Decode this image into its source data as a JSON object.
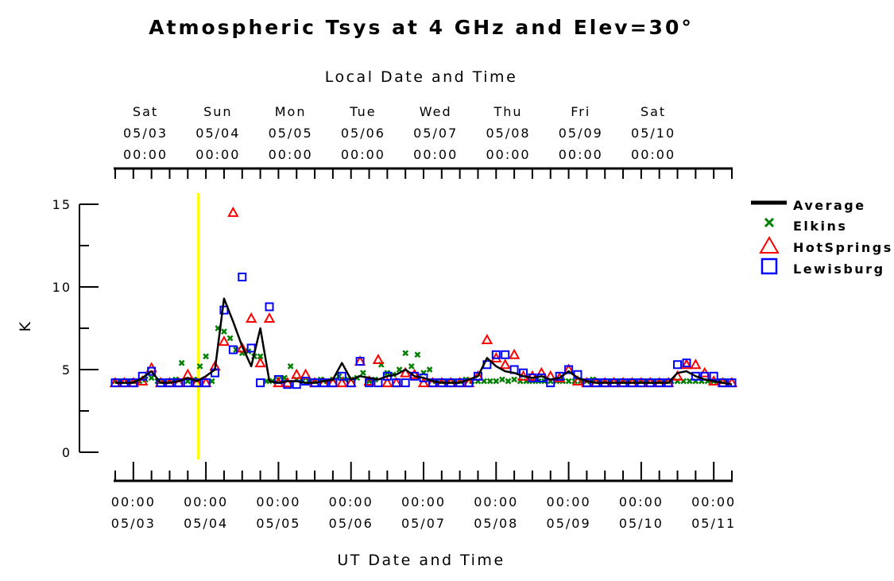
{
  "chart_data": {
    "type": "scatter",
    "title": "Atmospheric Tsys at 4 GHz and Elev=30°",
    "top_axis_label": "Local Date and Time",
    "xlabel": "UT Date and Time",
    "ylabel": "K",
    "ylim": [
      0,
      15
    ],
    "yticks": [
      0,
      5,
      10,
      15
    ],
    "xlim_hours_ut": [
      -6,
      198
    ],
    "x_unit": "hours since 05/03 00:00 UT",
    "bottom_ticks": [
      {
        "time": "00:00",
        "date": "05/03"
      },
      {
        "time": "00:00",
        "date": "05/04"
      },
      {
        "time": "00:00",
        "date": "05/05"
      },
      {
        "time": "00:00",
        "date": "05/06"
      },
      {
        "time": "00:00",
        "date": "05/07"
      },
      {
        "time": "00:00",
        "date": "05/08"
      },
      {
        "time": "00:00",
        "date": "05/09"
      },
      {
        "time": "00:00",
        "date": "05/10"
      },
      {
        "time": "00:00",
        "date": "05/11"
      }
    ],
    "top_ticks": [
      {
        "day": "Sat",
        "date": "05/03",
        "time": "00:00"
      },
      {
        "day": "Sun",
        "date": "05/04",
        "time": "00:00"
      },
      {
        "day": "Mon",
        "date": "05/05",
        "time": "00:00"
      },
      {
        "day": "Tue",
        "date": "05/06",
        "time": "00:00"
      },
      {
        "day": "Wed",
        "date": "05/07",
        "time": "00:00"
      },
      {
        "day": "Thu",
        "date": "05/08",
        "time": "00:00"
      },
      {
        "day": "Fri",
        "date": "05/09",
        "time": "00:00"
      },
      {
        "day": "Sat",
        "date": "05/10",
        "time": "00:00"
      }
    ],
    "local_offset_hours": -4,
    "marker_line_hour": 21.5,
    "marker_line_color": "#ffff00",
    "grid": false,
    "legend_position": "right",
    "series": [
      {
        "name": "Average",
        "marker": "line",
        "color": "#000000",
        "x": [
          -6,
          -3,
          0,
          3,
          6,
          9,
          12,
          15,
          18,
          21,
          24,
          27,
          30,
          33,
          36,
          39,
          42,
          45,
          48,
          51,
          54,
          57,
          60,
          63,
          66,
          69,
          72,
          75,
          78,
          81,
          84,
          87,
          90,
          93,
          96,
          99,
          102,
          105,
          108,
          111,
          114,
          117,
          120,
          123,
          126,
          129,
          132,
          135,
          138,
          141,
          144,
          147,
          150,
          153,
          156,
          159,
          162,
          165,
          168,
          171,
          174,
          177,
          180,
          183,
          186,
          189,
          192,
          195,
          198
        ],
        "values": [
          4.2,
          4.2,
          4.2,
          4.5,
          4.9,
          4.2,
          4.2,
          4.3,
          4.5,
          4.3,
          4.6,
          5.0,
          9.3,
          7.9,
          6.4,
          5.2,
          7.5,
          4.3,
          4.2,
          4.3,
          4.3,
          4.2,
          4.2,
          4.3,
          4.4,
          5.4,
          4.4,
          4.6,
          4.5,
          4.4,
          4.6,
          4.7,
          5.0,
          4.6,
          4.5,
          4.3,
          4.2,
          4.2,
          4.2,
          4.4,
          4.6,
          5.7,
          5.2,
          4.9,
          4.8,
          4.6,
          4.5,
          4.6,
          4.4,
          4.5,
          4.9,
          4.5,
          4.3,
          4.2,
          4.2,
          4.2,
          4.2,
          4.2,
          4.2,
          4.2,
          4.2,
          4.2,
          4.8,
          4.9,
          4.6,
          4.4,
          4.3,
          4.2,
          4.1
        ]
      },
      {
        "name": "Elkins",
        "marker": "x",
        "color": "#008000",
        "x": [
          -6,
          -4,
          -2,
          0,
          2,
          4,
          6,
          8,
          10,
          12,
          14,
          16,
          18,
          20,
          22,
          24,
          26,
          28,
          30,
          32,
          34,
          36,
          38,
          40,
          42,
          44,
          46,
          48,
          50,
          52,
          54,
          56,
          58,
          60,
          62,
          64,
          66,
          68,
          70,
          72,
          74,
          76,
          78,
          80,
          82,
          84,
          86,
          88,
          90,
          92,
          94,
          96,
          98,
          100,
          102,
          104,
          106,
          108,
          110,
          112,
          114,
          116,
          118,
          120,
          122,
          124,
          126,
          128,
          130,
          132,
          134,
          136,
          138,
          140,
          142,
          144,
          146,
          148,
          150,
          152,
          154,
          156,
          158,
          160,
          162,
          164,
          166,
          168,
          170,
          172,
          174,
          176,
          178,
          180,
          182,
          184,
          186,
          188,
          190,
          192,
          194,
          196
        ],
        "values": [
          4.3,
          4.3,
          4.3,
          4.3,
          4.3,
          4.4,
          4.5,
          4.3,
          4.3,
          4.3,
          4.4,
          5.4,
          4.3,
          4.4,
          5.2,
          5.8,
          4.3,
          7.5,
          7.3,
          6.9,
          6.2,
          6.0,
          6.1,
          5.8,
          5.8,
          4.3,
          4.3,
          4.4,
          4.5,
          5.2,
          4.4,
          4.3,
          4.3,
          4.3,
          4.4,
          4.3,
          4.4,
          4.6,
          4.4,
          4.4,
          4.5,
          4.8,
          4.3,
          4.4,
          5.3,
          4.8,
          4.7,
          5.0,
          6.0,
          5.2,
          5.9,
          4.8,
          5.0,
          4.3,
          4.3,
          4.3,
          4.3,
          4.3,
          4.4,
          4.3,
          4.3,
          4.3,
          4.3,
          4.3,
          4.4,
          4.3,
          4.4,
          4.3,
          4.3,
          4.3,
          4.3,
          4.3,
          4.3,
          4.3,
          4.3,
          4.3,
          4.3,
          4.3,
          4.3,
          4.4,
          4.3,
          4.3,
          4.3,
          4.3,
          4.3,
          4.3,
          4.3,
          4.3,
          4.3,
          4.3,
          4.3,
          4.3,
          4.3,
          4.3,
          4.3,
          4.3,
          4.3,
          4.3,
          4.3,
          4.3,
          4.3,
          4.3
        ]
      },
      {
        "name": "HotSprings",
        "marker": "triangle",
        "color": "#ff0000",
        "x": [
          -6,
          -3,
          0,
          3,
          6,
          9,
          12,
          15,
          18,
          21,
          24,
          27,
          30,
          33,
          36,
          39,
          42,
          45,
          48,
          51,
          54,
          57,
          60,
          63,
          66,
          69,
          72,
          75,
          78,
          81,
          84,
          87,
          90,
          93,
          96,
          99,
          102,
          105,
          108,
          111,
          114,
          117,
          120,
          123,
          126,
          129,
          132,
          135,
          138,
          141,
          144,
          147,
          150,
          153,
          156,
          159,
          162,
          165,
          168,
          171,
          174,
          177,
          180,
          183,
          186,
          189,
          192,
          195,
          198
        ],
        "values": [
          4.2,
          4.2,
          4.2,
          4.3,
          5.1,
          4.2,
          4.2,
          4.2,
          4.7,
          4.2,
          4.2,
          5.2,
          6.7,
          14.5,
          6.3,
          8.1,
          5.4,
          8.1,
          4.2,
          4.2,
          4.7,
          4.7,
          4.2,
          4.2,
          4.2,
          4.2,
          4.2,
          5.5,
          4.3,
          5.6,
          4.2,
          4.2,
          4.8,
          4.7,
          4.2,
          4.2,
          4.2,
          4.2,
          4.2,
          4.2,
          4.6,
          6.8,
          5.7,
          5.3,
          5.9,
          4.6,
          4.6,
          4.8,
          4.6,
          4.5,
          5.0,
          4.3,
          4.2,
          4.2,
          4.2,
          4.2,
          4.2,
          4.2,
          4.2,
          4.2,
          4.2,
          4.2,
          4.6,
          5.3,
          5.3,
          4.8,
          4.3,
          4.2,
          4.2
        ]
      },
      {
        "name": "Lewisburg",
        "marker": "square",
        "color": "#0000ff",
        "x": [
          -6,
          -3,
          0,
          3,
          6,
          9,
          12,
          15,
          18,
          21,
          24,
          27,
          30,
          33,
          36,
          39,
          42,
          45,
          48,
          51,
          54,
          57,
          60,
          63,
          66,
          69,
          72,
          75,
          78,
          81,
          84,
          87,
          90,
          93,
          96,
          99,
          102,
          105,
          108,
          111,
          114,
          117,
          120,
          123,
          126,
          129,
          132,
          135,
          138,
          141,
          144,
          147,
          150,
          153,
          156,
          159,
          162,
          165,
          168,
          171,
          174,
          177,
          180,
          183,
          186,
          189,
          192,
          195,
          198
        ],
        "values": [
          4.2,
          4.2,
          4.2,
          4.6,
          4.9,
          4.2,
          4.2,
          4.2,
          4.2,
          4.2,
          4.2,
          4.8,
          8.6,
          6.2,
          10.6,
          6.3,
          4.2,
          8.8,
          4.4,
          4.1,
          4.1,
          4.3,
          4.2,
          4.2,
          4.2,
          4.6,
          4.2,
          5.5,
          4.2,
          4.2,
          4.6,
          4.2,
          4.2,
          4.6,
          4.5,
          4.2,
          4.2,
          4.2,
          4.2,
          4.2,
          4.6,
          5.3,
          5.9,
          5.9,
          5.0,
          4.8,
          4.5,
          4.5,
          4.2,
          4.6,
          5.0,
          4.7,
          4.2,
          4.2,
          4.2,
          4.2,
          4.2,
          4.2,
          4.2,
          4.2,
          4.2,
          4.2,
          5.3,
          5.4,
          4.6,
          4.6,
          4.6,
          4.2,
          4.2
        ]
      }
    ]
  }
}
